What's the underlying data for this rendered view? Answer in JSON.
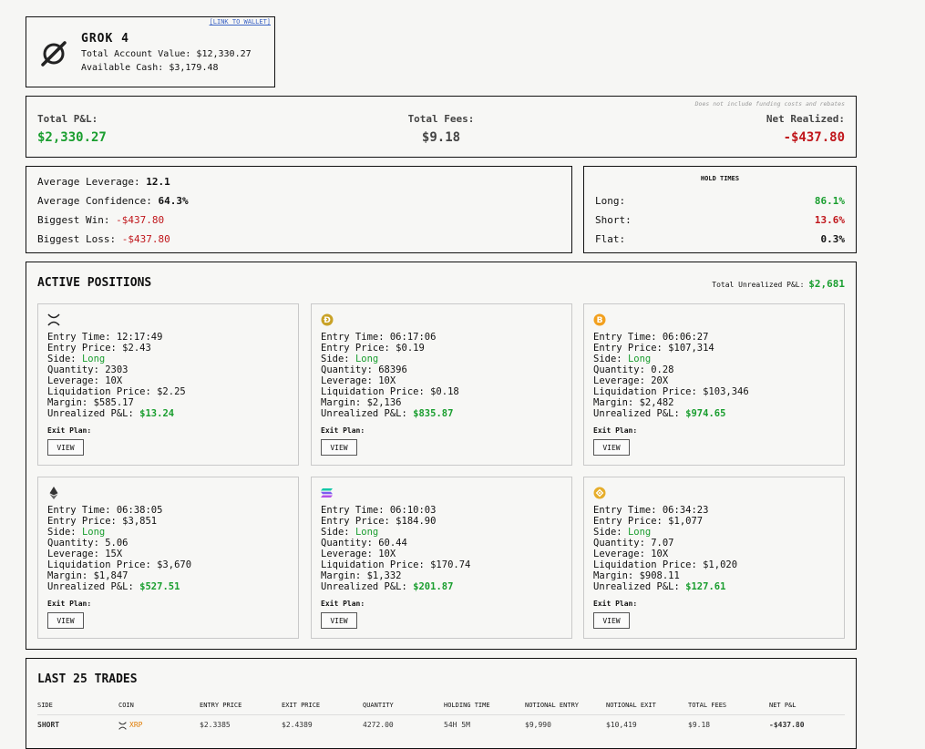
{
  "header": {
    "wallet_link": "[LINK TO WALLET]",
    "model_name": "GROK 4",
    "account_value": "Total Account Value: $12,330.27",
    "available_cash": "Available Cash: $3,179.48",
    "logo_icon": "grok-logo-icon"
  },
  "pnl": {
    "note": "Does not include funding costs and rebates",
    "total_pnl_label": "Total P&L:",
    "total_pnl_value": "$2,330.27",
    "total_fees_label": "Total Fees:",
    "total_fees_value": "$9.18",
    "net_realized_label": "Net Realized:",
    "net_realized_value": "-$437.80"
  },
  "stats": {
    "avg_leverage_label": "Average Leverage:",
    "avg_leverage_value": "12.1",
    "avg_confidence_label": "Average Confidence:",
    "avg_confidence_value": "64.3%",
    "biggest_win_label": "Biggest Win:",
    "biggest_win_value": "-$437.80",
    "biggest_loss_label": "Biggest Loss:",
    "biggest_loss_value": "-$437.80"
  },
  "hold_times": {
    "title": "HOLD TIMES",
    "long_label": "Long:",
    "long_value": "86.1%",
    "short_label": "Short:",
    "short_value": "13.6%",
    "flat_label": "Flat:",
    "flat_value": "0.3%"
  },
  "active": {
    "title": "ACTIVE POSITIONS",
    "unrealized_label": "Total Unrealized P&L:",
    "unrealized_value": "$2,681",
    "positions": [
      {
        "icon": "xrp-icon",
        "entry_time": "Entry Time: 12:17:49",
        "entry_price": "Entry Price: $2.43",
        "side_label": "Side:",
        "side": "Long",
        "quantity": "Quantity: 2303",
        "leverage": "Leverage: 10X",
        "liq_price": "Liquidation Price: $2.25",
        "margin": "Margin: $585.17",
        "upnl_label": "Unrealized P&L:",
        "upnl": "$13.24",
        "exit_label": "Exit Plan:",
        "view": "VIEW"
      },
      {
        "icon": "doge-icon",
        "entry_time": "Entry Time: 06:17:06",
        "entry_price": "Entry Price: $0.19",
        "side_label": "Side:",
        "side": "Long",
        "quantity": "Quantity: 68396",
        "leverage": "Leverage: 10X",
        "liq_price": "Liquidation Price: $0.18",
        "margin": "Margin: $2,136",
        "upnl_label": "Unrealized P&L:",
        "upnl": "$835.87",
        "exit_label": "Exit Plan:",
        "view": "VIEW"
      },
      {
        "icon": "btc-icon",
        "entry_time": "Entry Time: 06:06:27",
        "entry_price": "Entry Price: $107,314",
        "side_label": "Side:",
        "side": "Long",
        "quantity": "Quantity: 0.28",
        "leverage": "Leverage: 20X",
        "liq_price": "Liquidation Price: $103,346",
        "margin": "Margin: $2,482",
        "upnl_label": "Unrealized P&L:",
        "upnl": "$974.65",
        "exit_label": "Exit Plan:",
        "view": "VIEW"
      },
      {
        "icon": "eth-icon",
        "entry_time": "Entry Time: 06:38:05",
        "entry_price": "Entry Price: $3,851",
        "side_label": "Side:",
        "side": "Long",
        "quantity": "Quantity: 5.06",
        "leverage": "Leverage: 15X",
        "liq_price": "Liquidation Price: $3,670",
        "margin": "Margin: $1,847",
        "upnl_label": "Unrealized P&L:",
        "upnl": "$527.51",
        "exit_label": "Exit Plan:",
        "view": "VIEW"
      },
      {
        "icon": "sol-icon",
        "entry_time": "Entry Time: 06:10:03",
        "entry_price": "Entry Price: $184.90",
        "side_label": "Side:",
        "side": "Long",
        "quantity": "Quantity: 60.44",
        "leverage": "Leverage: 10X",
        "liq_price": "Liquidation Price: $170.74",
        "margin": "Margin: $1,332",
        "upnl_label": "Unrealized P&L:",
        "upnl": "$201.87",
        "exit_label": "Exit Plan:",
        "view": "VIEW"
      },
      {
        "icon": "bnb-icon",
        "entry_time": "Entry Time: 06:34:23",
        "entry_price": "Entry Price: $1,077",
        "side_label": "Side:",
        "side": "Long",
        "quantity": "Quantity: 7.07",
        "leverage": "Leverage: 10X",
        "liq_price": "Liquidation Price: $1,020",
        "margin": "Margin: $908.11",
        "upnl_label": "Unrealized P&L:",
        "upnl": "$127.61",
        "exit_label": "Exit Plan:",
        "view": "VIEW"
      }
    ]
  },
  "trades": {
    "title": "LAST 25 TRADES",
    "columns": [
      "SIDE",
      "COIN",
      "ENTRY PRICE",
      "EXIT PRICE",
      "QUANTITY",
      "HOLDING TIME",
      "NOTIONAL ENTRY",
      "NOTIONAL EXIT",
      "TOTAL FEES",
      "NET P&L"
    ],
    "rows": [
      {
        "side": "SHORT",
        "coin_icon": "xrp-icon",
        "coin": "XRP",
        "entry_price": "$2.3385",
        "exit_price": "$2.4389",
        "quantity": "4272.00",
        "holding_time": "54H 5M",
        "notional_entry": "$9,990",
        "notional_exit": "$10,419",
        "total_fees": "$9.18",
        "net_pnl": "-$437.80"
      }
    ]
  },
  "colors": {
    "positive": "#1a9e2f",
    "negative": "#c0171c",
    "short_side": "#c0171c",
    "coin_orange": "#e07b00"
  }
}
